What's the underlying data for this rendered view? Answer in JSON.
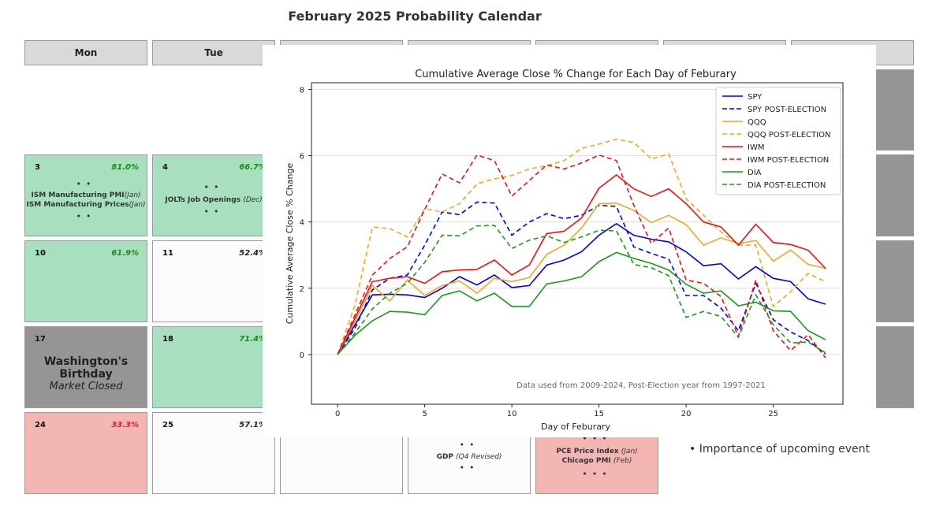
{
  "calendar": {
    "title": "February 2025 Probability Calendar",
    "headers": [
      "Mon",
      "Tue"
    ],
    "day3": {
      "day": "3",
      "pct": "81.0%",
      "event1": "ISM Manufacturing PMI",
      "event1_note": "(Jan)",
      "event2": "ISM Manufacturing Prices",
      "event2_note": "(Jan)"
    },
    "day4": {
      "day": "4",
      "pct": "66.7%",
      "event1": "JOLTs Job Openings",
      "event1_note": "(Dec)"
    },
    "day10": {
      "day": "10",
      "pct": "61.9%"
    },
    "day11": {
      "day": "11",
      "pct": "52.4%"
    },
    "day17": {
      "day": "17",
      "holiday": "Washington's Birthday",
      "closed": "Market Closed"
    },
    "day18": {
      "day": "18",
      "pct": "71.4%"
    },
    "day24": {
      "day": "24",
      "pct": "33.3%"
    },
    "day25": {
      "day": "25",
      "pct": "57.1%"
    },
    "day27": {
      "event1": "GDP",
      "event1_note": "(Q4 Revised)"
    },
    "day28": {
      "event1": "PCE Price Index",
      "event1_note": "(Jan)",
      "event2": "Chicago PMI",
      "event2_note": "(Feb)"
    },
    "legend_note": "Importance of upcoming event",
    "colors": {
      "green": "#a8dfbe",
      "red": "#f4b6b2",
      "gray": "#959595"
    }
  },
  "chart_data": {
    "type": "line",
    "title": "Cumulative Average Close % Change for Each Day of Feburary",
    "xlabel": "Day of Feburary",
    "ylabel": "Cumulative Average Close % Change",
    "xlim": [
      -1.5,
      29
    ],
    "ylim": [
      -1.5,
      8.2
    ],
    "xticks": [
      0,
      5,
      10,
      15,
      20,
      25
    ],
    "yticks": [
      0,
      2,
      4,
      6,
      8
    ],
    "annotation": "Data used from 2009-2024, Post-Election year from 1997-2021",
    "x": [
      0,
      1,
      2,
      3,
      4,
      5,
      6,
      7,
      8,
      9,
      10,
      11,
      12,
      13,
      14,
      15,
      16,
      17,
      18,
      19,
      20,
      21,
      22,
      23,
      24,
      25,
      26,
      27,
      28
    ],
    "series": [
      {
        "name": "SPY",
        "color": "#0000ee",
        "dashed": false,
        "values": [
          0,
          0.9,
          1.8,
          1.82,
          1.8,
          1.72,
          2.0,
          2.35,
          2.1,
          2.4,
          2.02,
          2.08,
          2.7,
          2.85,
          3.1,
          3.6,
          3.95,
          3.6,
          3.48,
          3.4,
          3.1,
          2.68,
          2.74,
          2.28,
          2.65,
          2.3,
          2.2,
          1.68,
          1.52
        ]
      },
      {
        "name": "SPY POST-ELECTION",
        "color": "#0000ee",
        "dashed": true,
        "values": [
          0,
          0.8,
          1.95,
          2.3,
          2.4,
          3.3,
          4.3,
          4.22,
          4.6,
          4.57,
          3.6,
          4.0,
          4.25,
          4.1,
          4.2,
          4.5,
          4.47,
          3.25,
          3.05,
          2.88,
          1.78,
          1.78,
          1.4,
          0.72,
          2.15,
          1.05,
          0.68,
          0.42,
          0.02
        ]
      },
      {
        "name": "QQQ",
        "color": "#f5a623",
        "dashed": false,
        "values": [
          0,
          1.0,
          2.08,
          1.62,
          2.25,
          1.78,
          2.08,
          2.22,
          1.85,
          2.3,
          2.2,
          2.32,
          3.02,
          3.3,
          3.82,
          4.55,
          4.57,
          4.35,
          3.98,
          4.2,
          3.92,
          3.3,
          3.52,
          3.35,
          3.44,
          2.82,
          3.15,
          2.72,
          2.6
        ]
      },
      {
        "name": "QQQ POST-ELECTION",
        "color": "#f5a623",
        "dashed": true,
        "values": [
          0,
          1.5,
          3.85,
          3.8,
          3.55,
          4.4,
          4.3,
          4.55,
          5.15,
          5.3,
          5.4,
          5.6,
          5.7,
          5.85,
          6.22,
          6.35,
          6.5,
          6.4,
          5.9,
          6.05,
          4.7,
          4.2,
          3.7,
          3.3,
          3.3,
          1.45,
          1.9,
          2.45,
          2.2
        ]
      },
      {
        "name": "IWM",
        "color": "#ee1111",
        "dashed": false,
        "values": [
          0,
          1.1,
          2.2,
          2.3,
          2.35,
          2.15,
          2.5,
          2.55,
          2.57,
          2.85,
          2.4,
          2.7,
          3.65,
          3.72,
          4.12,
          5.02,
          5.42,
          5.0,
          4.77,
          5.0,
          4.55,
          4.0,
          3.85,
          3.3,
          3.93,
          3.38,
          3.32,
          3.15,
          2.6
        ]
      },
      {
        "name": "IWM POST-ELECTION",
        "color": "#ee1111",
        "dashed": true,
        "values": [
          0,
          1.2,
          2.4,
          2.9,
          3.25,
          4.38,
          5.45,
          5.18,
          6.02,
          5.85,
          4.78,
          5.25,
          5.72,
          5.6,
          5.78,
          6.02,
          5.85,
          4.5,
          3.35,
          3.82,
          2.25,
          2.15,
          1.75,
          0.55,
          2.25,
          0.72,
          0.12,
          0.6,
          -0.1
        ]
      },
      {
        "name": "DIA",
        "color": "#1a9a1a",
        "dashed": false,
        "values": [
          0,
          0.58,
          1.02,
          1.3,
          1.28,
          1.2,
          1.78,
          1.92,
          1.62,
          1.85,
          1.45,
          1.45,
          2.13,
          2.22,
          2.35,
          2.8,
          3.08,
          2.9,
          2.75,
          2.55,
          2.12,
          1.85,
          1.92,
          1.47,
          1.58,
          1.32,
          1.3,
          0.72,
          0.45
        ]
      },
      {
        "name": "DIA POST-ELECTION",
        "color": "#1a9a1a",
        "dashed": true,
        "values": [
          0,
          0.65,
          1.38,
          1.85,
          2.15,
          2.78,
          3.6,
          3.58,
          3.88,
          3.9,
          3.2,
          3.45,
          3.58,
          3.38,
          3.55,
          3.75,
          3.73,
          2.72,
          2.62,
          2.38,
          1.12,
          1.3,
          1.15,
          0.52,
          1.8,
          0.9,
          0.35,
          0.38,
          0.05
        ]
      }
    ]
  }
}
